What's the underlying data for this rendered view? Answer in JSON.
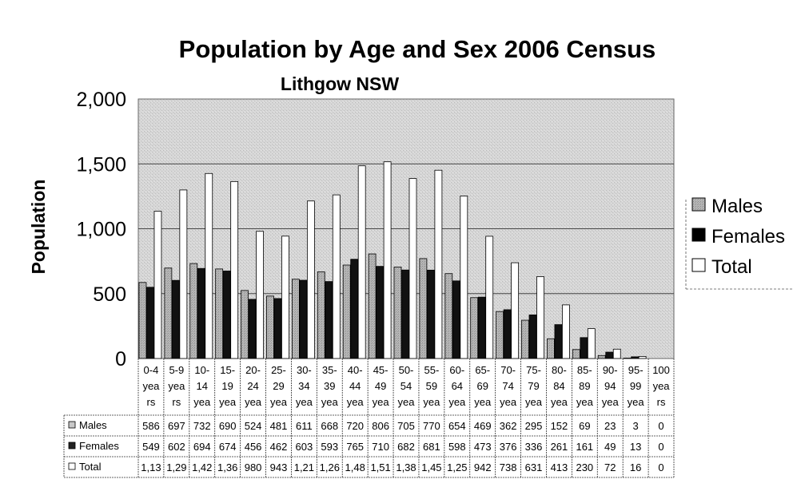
{
  "chart_data": {
    "type": "bar",
    "title": "Population by Age and Sex 2006 Census",
    "subtitle": "Lithgow NSW",
    "ylabel": "Population",
    "xlabel": "",
    "ylim": [
      0,
      2000
    ],
    "yticks": [
      0,
      500,
      1000,
      1500,
      2000
    ],
    "ytick_labels": [
      "0",
      "500",
      "1,000",
      "1,500",
      "2,000"
    ],
    "grid": true,
    "legend_position": "right",
    "category_labels": [
      [
        "0-4",
        "yea",
        "rs"
      ],
      [
        "5-9",
        "yea",
        "rs"
      ],
      [
        "10-",
        "14",
        "yea"
      ],
      [
        "15-",
        "19",
        "yea"
      ],
      [
        "20-",
        "24",
        "yea"
      ],
      [
        "25-",
        "29",
        "yea"
      ],
      [
        "30-",
        "34",
        "yea"
      ],
      [
        "35-",
        "39",
        "yea"
      ],
      [
        "40-",
        "44",
        "yea"
      ],
      [
        "45-",
        "49",
        "yea"
      ],
      [
        "50-",
        "54",
        "yea"
      ],
      [
        "55-",
        "59",
        "yea"
      ],
      [
        "60-",
        "64",
        "yea"
      ],
      [
        "65-",
        "69",
        "yea"
      ],
      [
        "70-",
        "74",
        "yea"
      ],
      [
        "75-",
        "79",
        "yea"
      ],
      [
        "80-",
        "84",
        "yea"
      ],
      [
        "85-",
        "89",
        "yea"
      ],
      [
        "90-",
        "94",
        "yea"
      ],
      [
        "95-",
        "99",
        "yea"
      ],
      [
        "100",
        "yea",
        "rs"
      ]
    ],
    "series": [
      {
        "name": "Males",
        "color": "#a9a9a9",
        "values": [
          586,
          697,
          732,
          690,
          524,
          481,
          611,
          668,
          720,
          806,
          705,
          770,
          654,
          469,
          362,
          295,
          152,
          69,
          23,
          3,
          0
        ],
        "table_labels": [
          "586",
          "697",
          "732",
          "690",
          "524",
          "481",
          "611",
          "668",
          "720",
          "806",
          "705",
          "770",
          "654",
          "469",
          "362",
          "295",
          "152",
          "69",
          "23",
          "3",
          "0"
        ]
      },
      {
        "name": "Females",
        "color": "#111111",
        "values": [
          549,
          602,
          694,
          674,
          456,
          462,
          603,
          593,
          765,
          710,
          682,
          681,
          598,
          473,
          376,
          336,
          261,
          161,
          49,
          13,
          0
        ],
        "table_labels": [
          "549",
          "602",
          "694",
          "674",
          "456",
          "462",
          "603",
          "593",
          "765",
          "710",
          "682",
          "681",
          "598",
          "473",
          "376",
          "336",
          "261",
          "161",
          "49",
          "13",
          "0"
        ]
      },
      {
        "name": "Total",
        "color": "#ffffff",
        "values": [
          1135,
          1299,
          1426,
          1364,
          980,
          943,
          1214,
          1261,
          1485,
          1516,
          1387,
          1451,
          1252,
          942,
          738,
          631,
          413,
          230,
          72,
          16,
          0
        ],
        "table_labels": [
          "1,13",
          "1,29",
          "1,42",
          "1,36",
          "980",
          "943",
          "1,21",
          "1,26",
          "1,48",
          "1,51",
          "1,38",
          "1,45",
          "1,25",
          "942",
          "738",
          "631",
          "413",
          "230",
          "72",
          "16",
          "0"
        ]
      }
    ]
  }
}
